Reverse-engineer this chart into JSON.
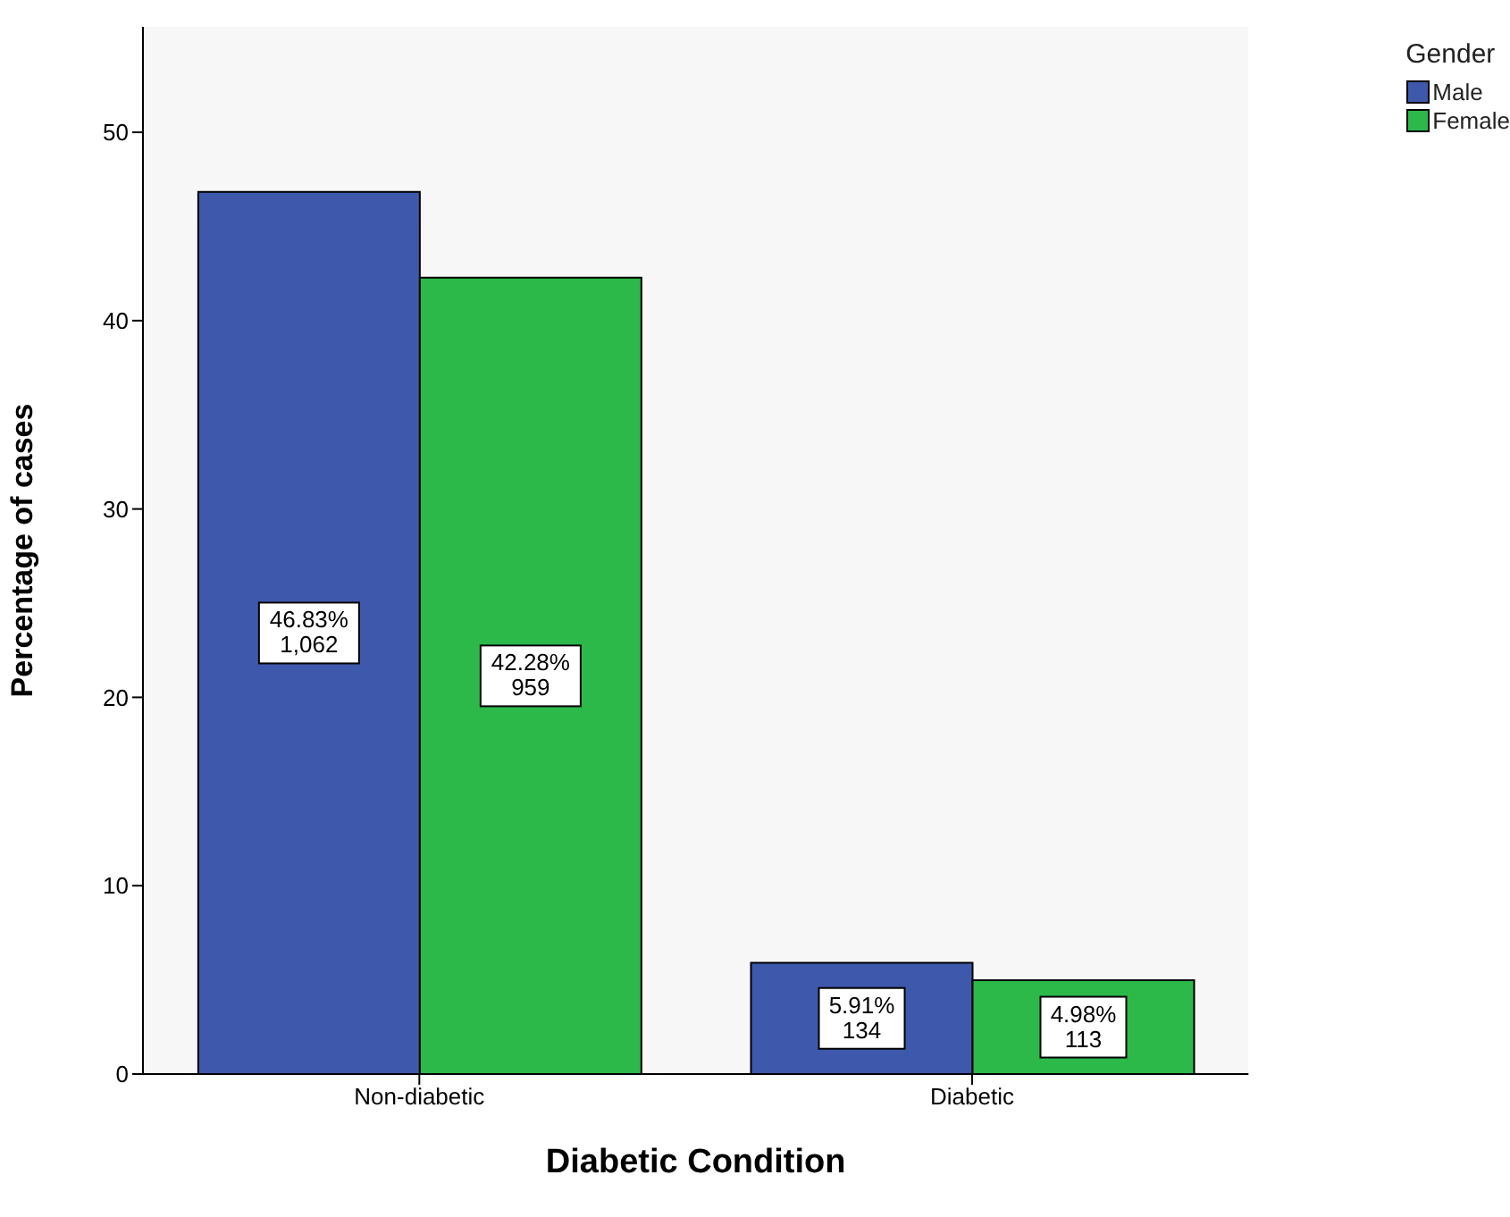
{
  "chart_data": {
    "type": "bar",
    "xlabel": "Diabetic Condition",
    "ylabel": "Percentage of cases",
    "legend_title": "Gender",
    "legend": "top right",
    "grid": false,
    "categories": [
      "Non-diabetic",
      "Diabetic"
    ],
    "series": [
      {
        "name": "Male",
        "color": "#3e58ac",
        "values": [
          46.83,
          5.91
        ],
        "value_labels": [
          "46.83%\n1,062",
          "5.91%\n134"
        ]
      },
      {
        "name": "Female",
        "color": "#2db84a",
        "values": [
          42.28,
          4.98
        ],
        "value_labels": [
          "42.28%\n959",
          "4.98%\n113"
        ]
      }
    ],
    "ylim": [
      0,
      55.6
    ],
    "yticks": [
      0,
      10,
      20,
      30,
      40,
      50
    ]
  }
}
